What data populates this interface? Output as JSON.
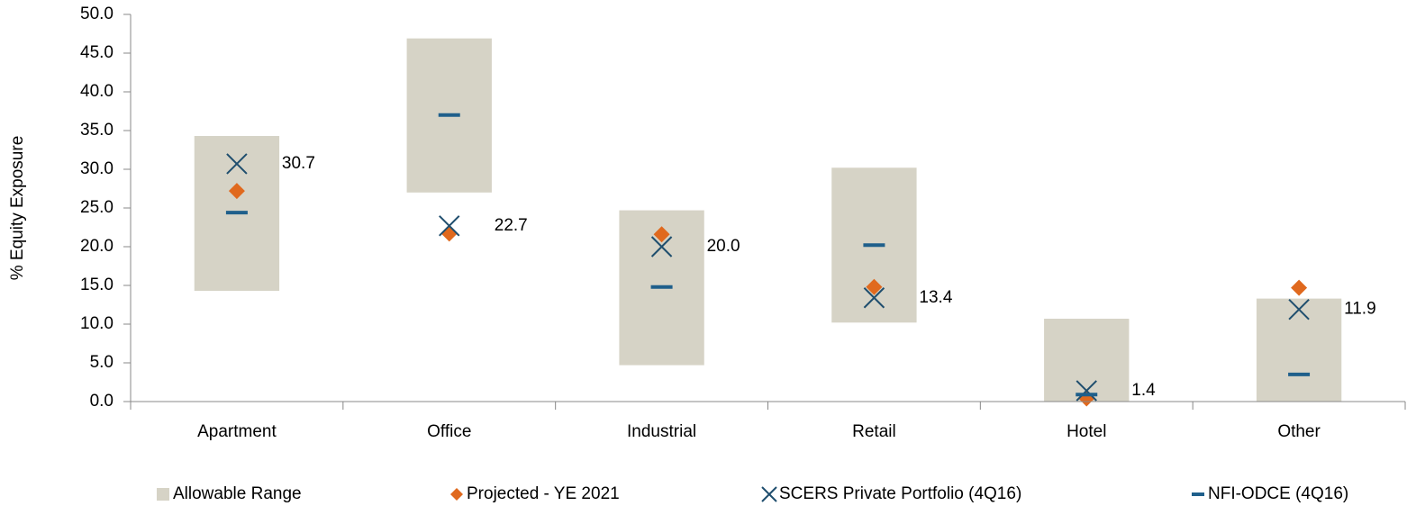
{
  "chart_data": {
    "type": "range-markers",
    "y_label": "% Equity Exposure",
    "categories": [
      "Apartment",
      "Office",
      "Industrial",
      "Retail",
      "Hotel",
      "Other"
    ],
    "ylim": [
      0,
      50
    ],
    "yticks": [
      {
        "value": 0,
        "label": "0.0"
      },
      {
        "value": 5,
        "label": "5.0"
      },
      {
        "value": 10,
        "label": "10.0"
      },
      {
        "value": 15,
        "label": "15.0"
      },
      {
        "value": 20,
        "label": "20.0"
      },
      {
        "value": 25,
        "label": "25.0"
      },
      {
        "value": 30,
        "label": "30.0"
      },
      {
        "value": 35,
        "label": "35.0"
      },
      {
        "value": 40,
        "label": "40.0"
      },
      {
        "value": 45,
        "label": "45.0"
      },
      {
        "value": 50,
        "label": "50.0"
      }
    ],
    "series": [
      {
        "name": "Allowable Range",
        "color": "#d6d3c6",
        "marker": "range",
        "low": [
          14.3,
          27.0,
          4.7,
          10.2,
          0,
          0
        ],
        "high": [
          34.3,
          46.9,
          24.7,
          30.2,
          10.7,
          13.3
        ]
      },
      {
        "name": "Projected  - YE 2021",
        "color": "#e0691e",
        "marker": "diamond",
        "values": [
          27.2,
          21.7,
          21.6,
          14.8,
          0.4,
          14.7
        ]
      },
      {
        "name": "SCERS Private Portfolio (4Q16)",
        "color": "#1f4e6e",
        "marker": "x",
        "values": [
          30.7,
          22.7,
          20.0,
          13.4,
          1.4,
          11.9
        ],
        "value_labels": [
          "30.7",
          "22.7",
          "20.0",
          "13.4",
          "1.4",
          "11.9"
        ]
      },
      {
        "name": "NFI-ODCE (4Q16)",
        "color": "#1f5f8b",
        "marker": "dash",
        "values": [
          24.4,
          37.0,
          14.8,
          20.2,
          0.9,
          3.5
        ]
      }
    ]
  }
}
